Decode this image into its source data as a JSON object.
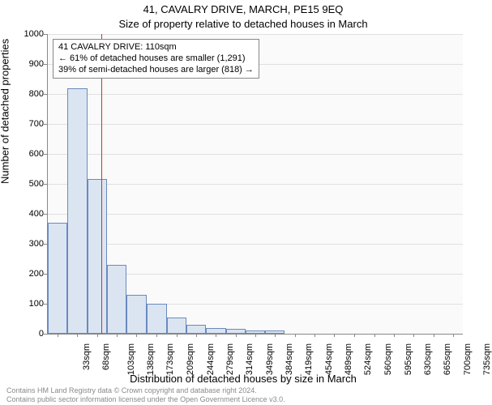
{
  "title": "41, CAVALRY DRIVE, MARCH, PE15 9EQ",
  "subtitle": "Size of property relative to detached houses in March",
  "y_axis_label": "Number of detached properties",
  "x_axis_label": "Distribution of detached houses by size in March",
  "footer_line1": "Contains HM Land Registry data © Crown copyright and database right 2024.",
  "footer_line2": "Contains public sector information licensed under the Open Government Licence v3.0.",
  "annotation": {
    "line1": "41 CAVALRY DRIVE: 110sqm",
    "line2": "← 61% of detached houses are smaller (1,291)",
    "line3": "39% of semi-detached houses are larger (818) →"
  },
  "chart": {
    "type": "histogram",
    "background_color": "#fafafa",
    "bar_fill": "#dbe5f1",
    "bar_stroke": "#6a8abf",
    "grid_color": "#e0e0e0",
    "axis_color": "#888888",
    "marker_color": "#cc3333",
    "marker_value": 110,
    "ylim": [
      0,
      1000
    ],
    "ytick_step": 100,
    "x_start": 15.5,
    "x_end": 752.5,
    "bin_width": 35,
    "x_tick_labels": [
      "33sqm",
      "68sqm",
      "103sqm",
      "138sqm",
      "173sqm",
      "209sqm",
      "244sqm",
      "279sqm",
      "314sqm",
      "349sqm",
      "384sqm",
      "419sqm",
      "454sqm",
      "489sqm",
      "524sqm",
      "560sqm",
      "595sqm",
      "630sqm",
      "665sqm",
      "700sqm",
      "735sqm"
    ],
    "x_tick_centers": [
      33,
      68,
      103,
      138,
      173,
      209,
      244,
      279,
      314,
      349,
      384,
      419,
      454,
      489,
      524,
      560,
      595,
      630,
      665,
      700,
      735
    ],
    "values": [
      370,
      820,
      515,
      230,
      130,
      100,
      55,
      30,
      20,
      15,
      12,
      10,
      0,
      0,
      0,
      0,
      0,
      0,
      0,
      0,
      0
    ],
    "title_fontsize": 13,
    "label_fontsize": 13,
    "tick_fontsize": 11
  }
}
